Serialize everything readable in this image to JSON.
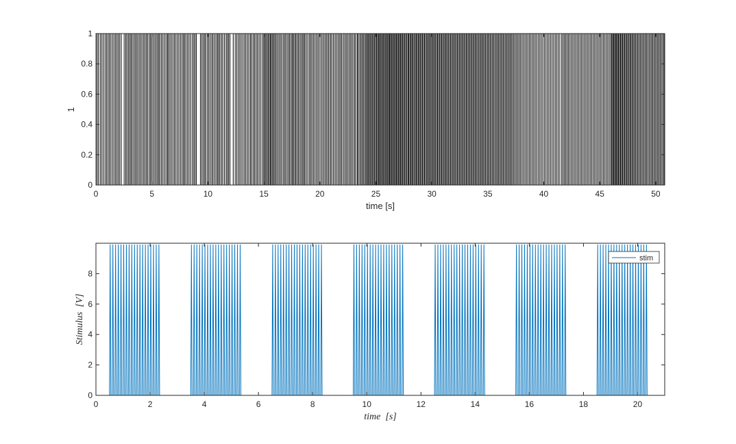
{
  "chart_data": [
    {
      "type": "raster",
      "title": "",
      "xlabel": "time [s]",
      "ylabel": "1",
      "xlim": [
        0,
        50.8
      ],
      "ylim": [
        0,
        1
      ],
      "xticks": [
        0,
        5,
        10,
        15,
        20,
        25,
        30,
        35,
        40,
        45,
        50
      ],
      "yticks": [
        0,
        0.2,
        0.4,
        0.6,
        0.8,
        1
      ],
      "ytick_labels": [
        "0",
        "0.2",
        "0.4",
        "0.6",
        "0.8",
        "1"
      ],
      "grid": false,
      "color": "#000000",
      "spike_times": [
        0.1,
        0.23,
        0.39,
        0.53,
        0.67,
        0.82,
        0.95,
        1.08,
        1.2,
        1.33,
        1.47,
        1.61,
        1.74,
        1.87,
        1.99,
        2.12,
        2.26,
        2.52,
        2.66,
        2.77,
        2.9,
        3.02,
        3.13,
        3.24,
        3.38,
        3.5,
        3.62,
        3.74,
        3.87,
        4.0,
        4.12,
        4.26,
        4.38,
        4.5,
        4.62,
        4.76,
        4.87,
        4.99,
        5.11,
        5.25,
        5.37,
        5.49,
        5.61,
        5.71,
        5.85,
        5.98,
        6.12,
        6.26,
        6.39,
        6.48,
        6.61,
        6.74,
        6.88,
        7.01,
        7.14,
        7.28,
        7.41,
        7.55,
        7.69,
        7.81,
        7.92,
        8.04,
        8.18,
        8.31,
        8.45,
        8.61,
        8.74,
        8.85,
        8.97,
        9.33,
        9.46,
        9.58,
        9.71,
        9.81,
        9.96,
        10.08,
        10.21,
        10.35,
        10.46,
        10.6,
        10.73,
        10.86,
        10.96,
        11.07,
        11.21,
        11.33,
        11.48,
        11.63,
        11.74,
        11.85,
        11.97,
        12.26,
        12.44,
        12.58,
        12.72,
        12.85,
        12.98,
        13.13,
        13.27,
        13.39,
        13.53,
        13.66,
        13.8,
        13.91,
        14.05,
        14.17,
        14.3,
        14.42,
        14.56,
        14.69,
        14.85,
        14.98,
        15.07,
        15.17,
        15.28,
        15.38,
        15.48,
        15.58,
        15.67,
        15.77,
        15.88,
        15.98,
        16.09,
        16.21,
        16.34,
        16.46,
        16.58,
        16.72,
        16.84,
        16.95,
        17.08,
        17.21,
        17.31,
        17.44,
        17.55,
        17.64,
        17.76,
        17.86,
        17.98,
        18.09,
        18.22,
        18.33,
        18.46,
        18.56,
        18.66,
        18.79,
        18.93,
        19.07,
        19.19,
        19.3,
        19.43,
        19.56,
        19.69,
        19.82,
        19.94,
        20.09,
        20.21,
        20.35,
        20.47,
        20.59,
        20.72,
        20.82,
        20.96,
        21.07,
        21.21,
        21.35,
        21.47,
        21.61,
        21.73,
        21.85,
        21.96,
        22.1,
        22.23,
        22.35,
        22.47,
        22.6,
        22.72,
        22.84,
        22.96,
        23.1,
        23.21,
        23.35,
        23.44,
        23.57,
        23.68,
        23.79,
        23.89,
        24.01,
        24.11,
        24.21,
        24.3,
        24.39,
        24.49,
        24.58,
        24.68,
        24.77,
        24.87,
        24.96,
        25.06,
        25.15,
        25.24,
        25.33,
        25.41,
        25.51,
        25.6,
        25.69,
        25.78,
        25.88,
        25.96,
        26.06,
        26.14,
        26.23,
        26.31,
        26.4,
        26.49,
        26.58,
        26.67,
        26.76,
        26.85,
        26.93,
        27.03,
        27.11,
        27.2,
        27.29,
        27.38,
        27.47,
        27.57,
        27.66,
        27.76,
        27.86,
        27.94,
        28.04,
        28.13,
        28.22,
        28.31,
        28.41,
        28.51,
        28.6,
        28.69,
        28.79,
        28.88,
        28.97,
        29.07,
        29.16,
        29.26,
        29.35,
        29.45,
        29.55,
        29.64,
        29.74,
        29.83,
        29.93,
        30.03,
        30.12,
        30.22,
        30.31,
        30.41,
        30.51,
        30.6,
        30.7,
        30.8,
        30.89,
        30.99,
        31.09,
        31.19,
        31.28,
        31.38,
        31.48,
        31.58,
        31.68,
        31.78,
        31.88,
        31.98,
        32.08,
        32.18,
        32.28,
        32.38,
        32.48,
        32.58,
        32.68,
        32.78,
        32.88,
        32.98,
        33.08,
        33.18,
        33.28,
        33.38,
        33.48,
        33.58,
        33.68,
        33.78,
        33.88,
        33.98,
        34.08,
        34.19,
        34.29,
        34.39,
        34.49,
        34.59,
        34.69,
        34.79,
        34.9,
        35.0,
        35.1,
        35.21,
        35.31,
        35.42,
        35.52,
        35.63,
        35.74,
        35.84,
        35.95,
        36.05,
        36.16,
        36.26,
        36.37,
        36.47,
        36.58,
        36.69,
        36.79,
        36.9,
        37.0,
        37.11,
        37.22,
        37.33,
        37.45,
        37.57,
        37.69,
        37.81,
        37.93,
        38.06,
        38.19,
        38.32,
        38.45,
        38.58,
        38.71,
        38.84,
        38.97,
        39.1,
        39.23,
        39.36,
        39.5,
        39.64,
        39.77,
        39.91,
        40.05,
        40.19,
        40.33,
        40.46,
        40.6,
        40.74,
        40.88,
        41.02,
        41.15,
        41.29,
        41.43,
        41.6,
        41.72,
        41.84,
        41.96,
        42.08,
        42.2,
        42.33,
        42.46,
        42.59,
        42.72,
        42.85,
        42.98,
        43.11,
        43.24,
        43.37,
        43.5,
        43.63,
        43.76,
        43.89,
        44.02,
        44.15,
        44.28,
        44.41,
        44.54,
        44.67,
        44.8,
        44.93,
        45.06,
        45.19,
        45.32,
        45.45,
        45.58,
        45.71,
        45.84,
        45.97,
        46.07,
        46.15,
        46.24,
        46.33,
        46.41,
        46.5,
        46.58,
        46.67,
        46.76,
        46.85,
        46.94,
        47.03,
        47.12,
        47.22,
        47.31,
        47.41,
        47.5,
        47.6,
        47.7,
        47.79,
        47.89,
        47.99,
        48.09,
        48.19,
        48.3,
        48.4,
        48.51,
        48.62,
        48.73,
        48.84,
        48.95,
        49.06,
        49.17,
        49.28,
        49.4,
        49.51,
        49.62,
        49.73,
        49.84,
        49.95,
        50.06,
        50.17,
        50.28,
        50.39,
        50.5,
        50.62,
        50.73
      ]
    },
    {
      "type": "line",
      "title": "",
      "xlabel": "time  [s]",
      "ylabel": "Stimulus  [V]",
      "xlim": [
        0,
        21
      ],
      "ylim": [
        0,
        10
      ],
      "xticks": [
        0,
        2,
        4,
        6,
        8,
        10,
        12,
        14,
        16,
        18,
        20
      ],
      "yticks": [
        0,
        2,
        4,
        6,
        8
      ],
      "grid": false,
      "legend_position": "top-right",
      "series": [
        {
          "name": "stim",
          "color": "#0072BD",
          "waveform": "pulse train",
          "amplitude": 9.9,
          "pulse_period": 0.1,
          "pulse_width": 0.05,
          "burst_on": [
            [
              0.5,
              2.4
            ],
            [
              3.5,
              5.4
            ],
            [
              6.5,
              8.4
            ],
            [
              9.5,
              11.4
            ],
            [
              12.5,
              14.4
            ],
            [
              15.5,
              17.4
            ],
            [
              18.5,
              20.4
            ]
          ]
        }
      ]
    }
  ]
}
